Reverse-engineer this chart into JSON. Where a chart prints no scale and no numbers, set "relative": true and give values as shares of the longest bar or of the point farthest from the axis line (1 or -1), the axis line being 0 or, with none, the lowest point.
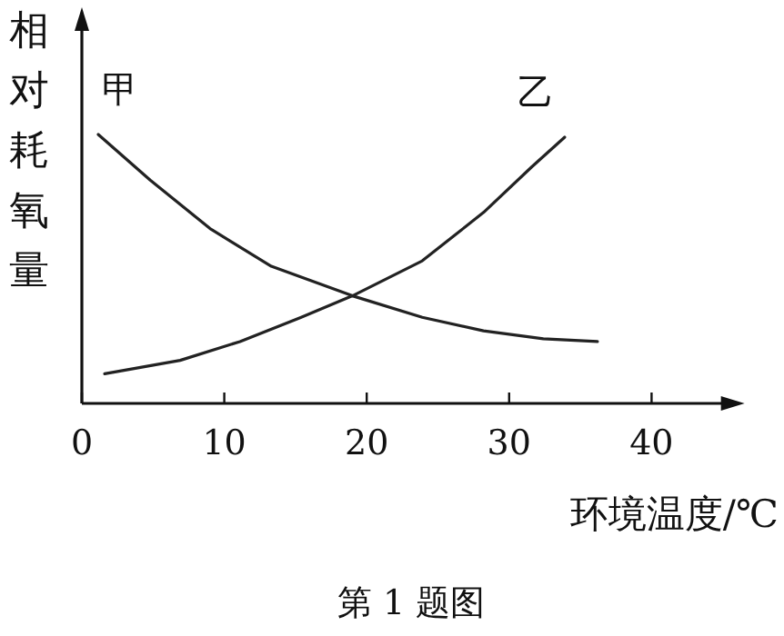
{
  "chart_data": {
    "type": "line",
    "relative": true,
    "xlabel": "环境温度/℃",
    "ylabel": "相对耗氧量",
    "annotations": [
      "第 1 题图"
    ],
    "xlim": [
      0,
      45
    ],
    "xticks": [
      0,
      10,
      20,
      30,
      40
    ],
    "grid": false,
    "series": [
      {
        "name": "甲",
        "color": "#222222",
        "x": [
          1.15,
          4.8,
          9.0,
          13.3,
          19.0,
          23.9,
          28.2,
          32.4,
          36.2
        ],
        "values": [
          1,
          0.83,
          0.65,
          0.51,
          0.4,
          0.32,
          0.27,
          0.24,
          0.23
        ]
      },
      {
        "name": "乙",
        "color": "#222222",
        "x": [
          1.6,
          6.9,
          11.1,
          15.4,
          19.0,
          23.9,
          28.2,
          31.6,
          33.9
        ],
        "values": [
          0.11,
          0.16,
          0.23,
          0.32,
          0.4,
          0.53,
          0.71,
          0.88,
          0.99
        ]
      }
    ]
  }
}
